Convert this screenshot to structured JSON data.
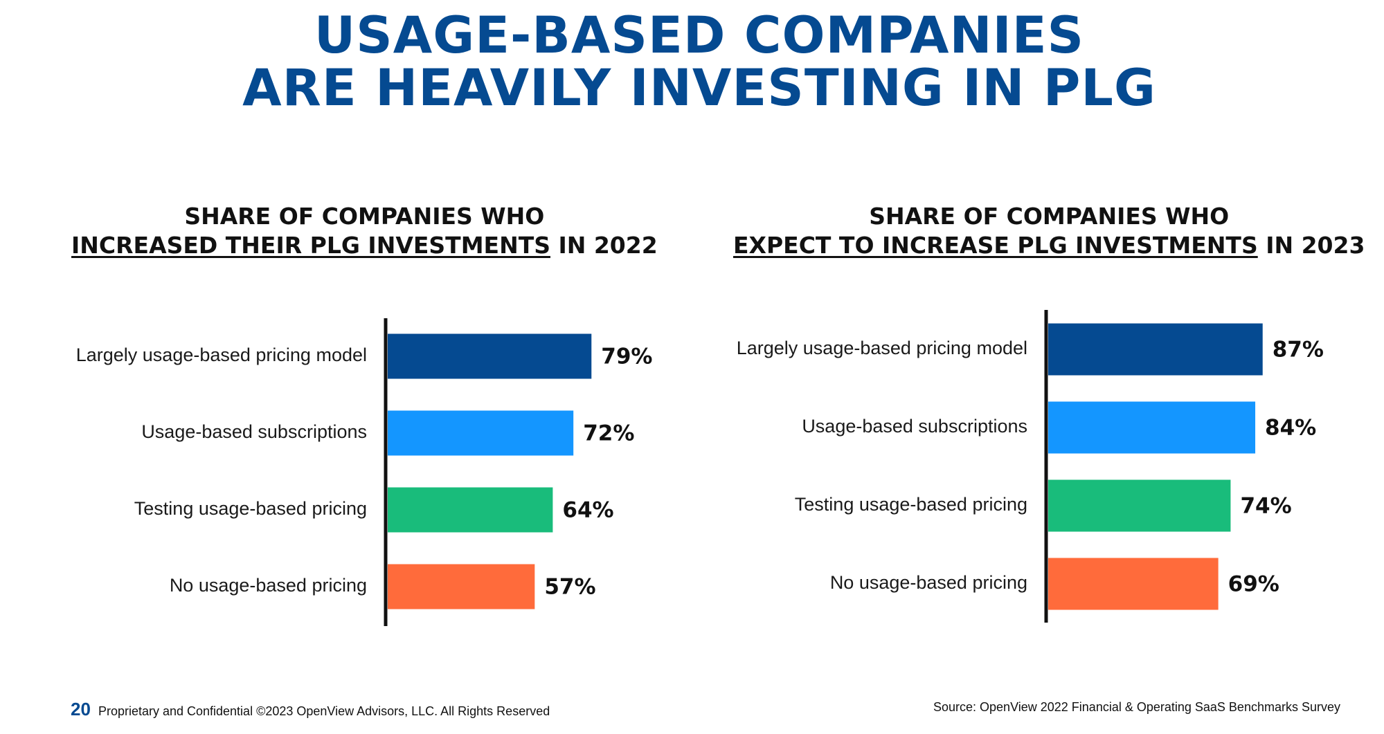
{
  "slide": {
    "title_line1": "USAGE-BASED COMPANIES",
    "title_line2": "ARE HEAVILY INVESTING IN PLG"
  },
  "chart_data": [
    {
      "type": "bar",
      "orientation": "horizontal",
      "title_line1": "SHARE OF COMPANIES WHO",
      "title_underlined": "INCREASED THEIR PLG INVESTMENTS",
      "title_suffix": " IN 2022",
      "categories": [
        "Largely usage-based pricing model",
        "Usage-based subscriptions",
        "Testing usage-based pricing",
        "No usage-based pricing"
      ],
      "values": [
        79,
        72,
        64,
        57
      ],
      "value_labels": [
        "79%",
        "72%",
        "64%",
        "57%"
      ],
      "colors": [
        "#054a91",
        "#1496ff",
        "#19bc7b",
        "#ff6b3b"
      ],
      "xlim": [
        0,
        100
      ],
      "unit": "%",
      "grid": false
    },
    {
      "type": "bar",
      "orientation": "horizontal",
      "title_line1": "SHARE OF COMPANIES WHO",
      "title_underlined": "EXPECT TO INCREASE PLG INVESTMENTS",
      "title_suffix": " IN 2023",
      "categories": [
        "Largely usage-based pricing model",
        "Usage-based subscriptions",
        "Testing usage-based pricing",
        "No usage-based pricing"
      ],
      "values": [
        87,
        84,
        74,
        69
      ],
      "value_labels": [
        "87%",
        "84%",
        "74%",
        "69%"
      ],
      "colors": [
        "#054a91",
        "#1496ff",
        "#19bc7b",
        "#ff6b3b"
      ],
      "xlim": [
        0,
        100
      ],
      "unit": "%",
      "grid": false
    }
  ],
  "footer": {
    "page_number": "20",
    "copyright": "Proprietary and Confidential ©2023 OpenView Advisors, LLC. All Rights Reserved",
    "source": "Source: OpenView 2022 Financial & Operating SaaS Benchmarks Survey"
  }
}
